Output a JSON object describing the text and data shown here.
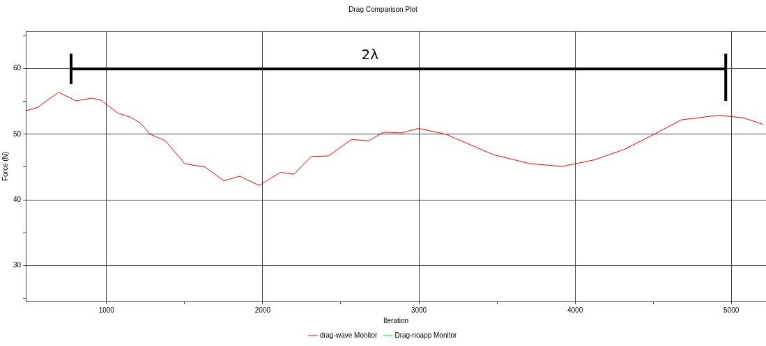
{
  "chart_data": {
    "type": "line",
    "title": "Drag Comparison Plot",
    "xlabel": "Iteration",
    "ylabel": "Force (N)",
    "x": [
      487,
      559,
      693,
      781,
      804,
      906,
      964,
      1075,
      1155,
      1217,
      1280,
      1377,
      1502,
      1631,
      1751,
      1853,
      1977,
      2115,
      2200,
      2311,
      2422,
      2568,
      2678,
      2773,
      2808,
      2887,
      2998,
      3173,
      3475,
      3713,
      3919,
      4124,
      4315,
      4506,
      4680,
      4920,
      5078,
      5203
    ],
    "series": [
      {
        "name": "drag-wave Monitor",
        "color": "#ff0000",
        "values": [
          53.6,
          54.1,
          56.4,
          55.4,
          55.1,
          55.5,
          55.2,
          53.2,
          52.6,
          51.7,
          50.0,
          49.0,
          45.5,
          45.0,
          42.9,
          43.6,
          42.2,
          44.2,
          43.9,
          46.6,
          46.7,
          49.2,
          49.0,
          50.3,
          50.3,
          50.2,
          50.9,
          50.0,
          46.9,
          45.5,
          45.1,
          46.1,
          47.7,
          50.0,
          52.2,
          52.9,
          52.5,
          51.5
        ]
      },
      {
        "name": "Drag-noapp Monitor",
        "color": "#00ff00",
        "values": [
          null,
          null,
          null,
          null,
          null,
          null,
          null,
          null,
          null,
          null,
          null,
          null,
          null,
          null,
          null,
          null,
          null,
          null,
          null,
          null,
          null,
          null,
          null,
          null,
          null,
          null,
          null,
          null,
          null,
          null,
          null,
          null,
          null,
          null,
          null,
          null,
          null,
          null
        ]
      }
    ],
    "xlim": [
      484,
      5222
    ],
    "xticks": [
      1000,
      {
        "value": 1500,
        "label": null
      },
      2000,
      {
        "value": 2500,
        "label": null
      },
      3000,
      {
        "value": 3500,
        "label": null
      },
      4000,
      {
        "value": 4500,
        "label": null
      },
      5000
    ],
    "ylim": [
      24.5,
      65.7
    ],
    "yticks": [
      {
        "value": 25,
        "label": null
      },
      30,
      {
        "value": 35,
        "label": null
      },
      40,
      {
        "value": 45,
        "label": null
      },
      50,
      {
        "value": 55,
        "label": null
      },
      60,
      {
        "value": 65,
        "label": null
      }
    ],
    "annotations": [
      "2λ"
    ],
    "grid": true,
    "legend": "bottom",
    "marker": "none",
    "line_style": "solid"
  }
}
